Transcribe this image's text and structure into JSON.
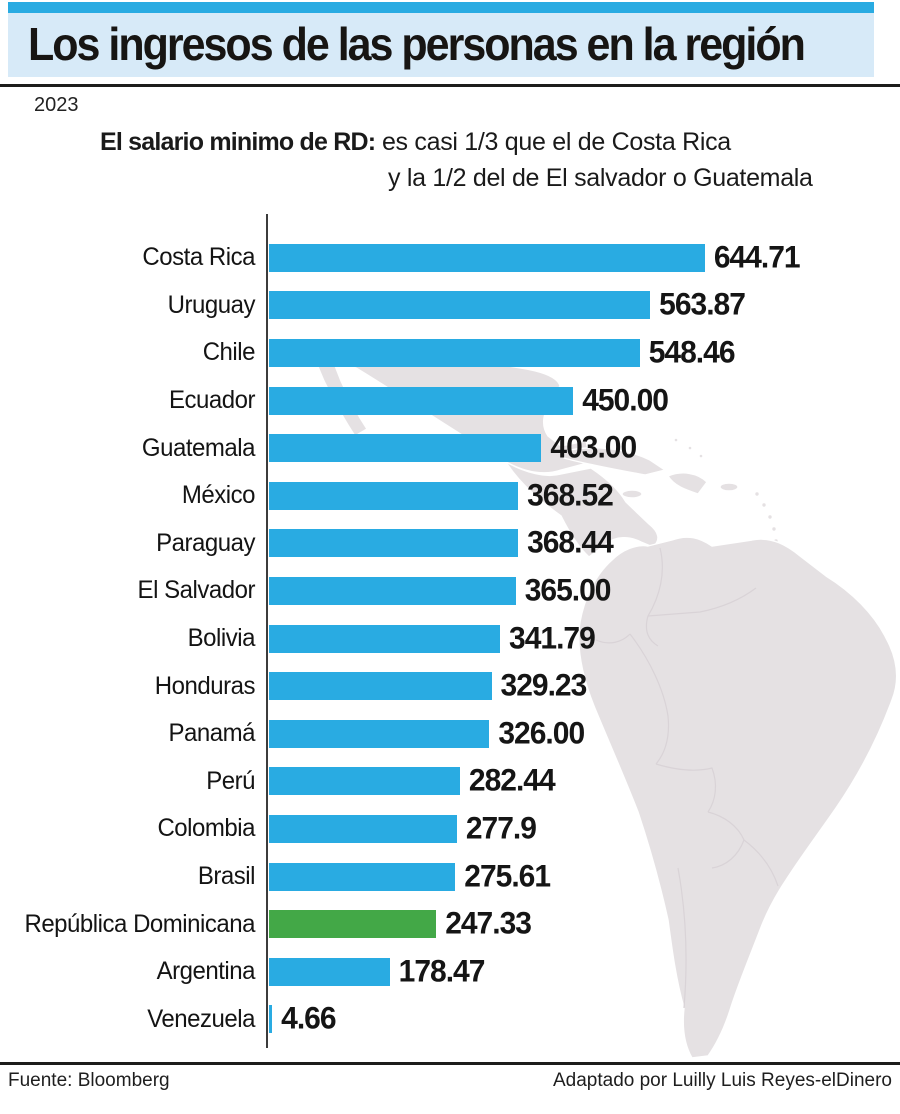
{
  "header": {
    "title": "Los ingresos de las personas en la región",
    "year": "2023",
    "subtitle_bold": "El salario minimo de RD:",
    "subtitle_rest": " es casi 1/3 que el de Costa Rica",
    "subtitle_line2": "y la 1/2 del de El salvador o Guatemala"
  },
  "chart_data": {
    "type": "bar",
    "orientation": "horizontal",
    "title": "El salario minimo de RD: es casi 1/3 que el de Costa Rica y la 1/2 del de El salvador o Guatemala",
    "categories": [
      "Costa Rica",
      "Uruguay",
      "Chile",
      "Ecuador",
      "Guatemala",
      "México",
      "Paraguay",
      "El Salvador",
      "Bolivia",
      "Honduras",
      "Panamá",
      "Perú",
      "Colombia",
      "Brasil",
      "República Dominicana",
      "Argentina",
      "Venezuela"
    ],
    "values": [
      644.71,
      563.87,
      548.46,
      450.0,
      403.0,
      368.52,
      368.44,
      365.0,
      341.79,
      329.23,
      326.0,
      282.44,
      277.9,
      275.61,
      247.33,
      178.47,
      4.66
    ],
    "value_labels": [
      "644.71",
      "563.87",
      "548.46",
      "450.00",
      "403.00",
      "368.52",
      "368.44",
      "365.00",
      "341.79",
      "329.23",
      "326.00",
      "282.44",
      "277.9",
      "275.61",
      "247.33",
      "178.47",
      "4.66"
    ],
    "highlight_category": "República Dominicana",
    "highlight_index": 14,
    "bar_color": "#29ABE2",
    "highlight_color": "#43A847",
    "xlim": [
      0,
      660
    ],
    "grid": false,
    "legend": false
  },
  "colors": {
    "accent_cyan": "#29ABE2",
    "title_band": "#D7EAF8",
    "highlight_green": "#43A847",
    "map_fill": "#E5E1E3",
    "map_border": "#FFFFFF",
    "rule": "#1D1D1B",
    "axis": "#3C3C3C"
  },
  "footer": {
    "source": "Fuente: Bloomberg",
    "credit": "Adaptado por Luilly Luis Reyes-elDinero"
  }
}
